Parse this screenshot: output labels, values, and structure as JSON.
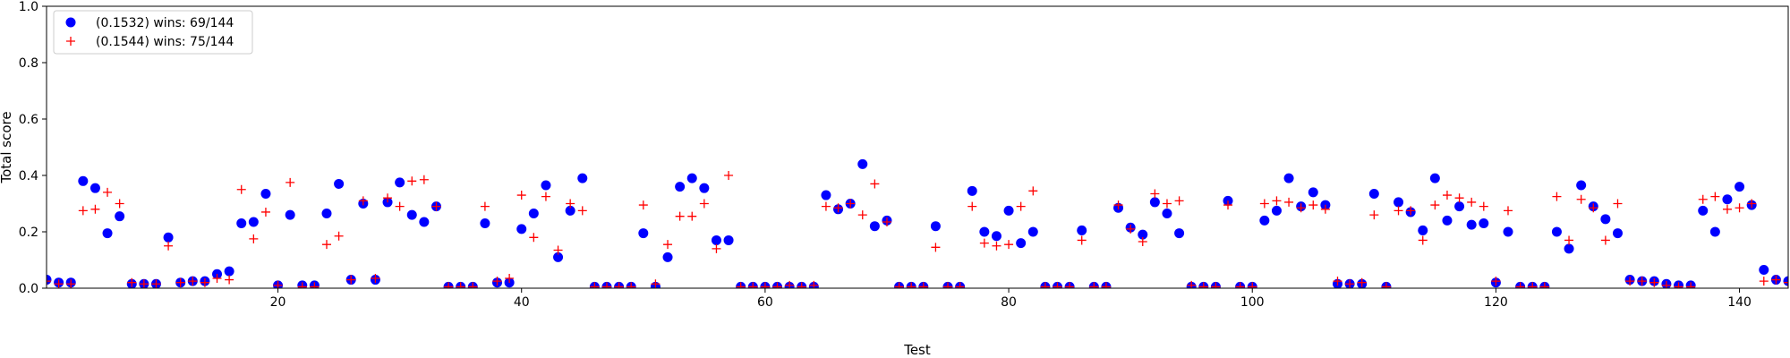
{
  "chart_data": {
    "type": "scatter",
    "title": "",
    "xlabel": "Test",
    "ylabel": "Total score",
    "xlim": [
      1,
      144
    ],
    "ylim": [
      0,
      1.0
    ],
    "x_ticks": [
      20,
      40,
      60,
      80,
      100,
      120,
      140
    ],
    "y_ticks": [
      0.0,
      0.2,
      0.4,
      0.6,
      0.8,
      1.0
    ],
    "x_tick_labels": [
      "20",
      "40",
      "60",
      "80",
      "100",
      "120",
      "140"
    ],
    "y_tick_labels": [
      "0.0",
      "0.2",
      "0.4",
      "0.6",
      "0.8",
      "1.0"
    ],
    "grid": false,
    "legend_position": "top-left",
    "series": [
      {
        "name": "(0.1532) wins: 69/144",
        "marker": "circle",
        "color": "#0000ff",
        "x": [
          1,
          2,
          3,
          4,
          5,
          6,
          7,
          8,
          9,
          10,
          11,
          12,
          13,
          14,
          15,
          16,
          17,
          18,
          19,
          20,
          21,
          22,
          23,
          24,
          25,
          26,
          27,
          28,
          29,
          30,
          31,
          32,
          33,
          34,
          35,
          36,
          37,
          38,
          39,
          40,
          41,
          42,
          43,
          44,
          45,
          46,
          47,
          48,
          49,
          50,
          51,
          52,
          53,
          54,
          55,
          56,
          57,
          58,
          59,
          60,
          61,
          62,
          63,
          64,
          65,
          66,
          67,
          68,
          69,
          70,
          71,
          72,
          73,
          74,
          75,
          76,
          77,
          78,
          79,
          80,
          81,
          82,
          83,
          84,
          85,
          86,
          87,
          88,
          89,
          90,
          91,
          92,
          93,
          94,
          95,
          96,
          97,
          98,
          99,
          100,
          101,
          102,
          103,
          104,
          105,
          106,
          107,
          108,
          109,
          110,
          111,
          112,
          113,
          114,
          115,
          116,
          117,
          118,
          119,
          120,
          121,
          122,
          123,
          124,
          125,
          126,
          127,
          128,
          129,
          130,
          131,
          132,
          133,
          134,
          135,
          136,
          137,
          138,
          139,
          140,
          141,
          142,
          143,
          144
        ],
        "y": [
          0.03,
          0.02,
          0.02,
          0.38,
          0.355,
          0.195,
          0.255,
          0.015,
          0.015,
          0.015,
          0.18,
          0.02,
          0.025,
          0.025,
          0.05,
          0.06,
          0.23,
          0.235,
          0.335,
          0.01,
          0.26,
          0.01,
          0.01,
          0.265,
          0.37,
          0.03,
          0.3,
          0.03,
          0.305,
          0.375,
          0.26,
          0.235,
          0.29,
          0.005,
          0.005,
          0.005,
          0.23,
          0.02,
          0.02,
          0.21,
          0.265,
          0.365,
          0.11,
          0.275,
          0.39,
          0.005,
          0.005,
          0.005,
          0.005,
          0.195,
          0.005,
          0.11,
          0.36,
          0.39,
          0.355,
          0.17,
          0.17,
          0.005,
          0.005,
          0.005,
          0.005,
          0.005,
          0.005,
          0.005,
          0.33,
          0.28,
          0.3,
          0.44,
          0.22,
          0.24,
          0.005,
          0.005,
          0.005,
          0.22,
          0.005,
          0.005,
          0.345,
          0.2,
          0.185,
          0.275,
          0.16,
          0.2,
          0.005,
          0.005,
          0.005,
          0.205,
          0.005,
          0.005,
          0.285,
          0.215,
          0.19,
          0.305,
          0.265,
          0.195,
          0.005,
          0.005,
          0.005,
          0.31,
          0.005,
          0.005,
          0.24,
          0.275,
          0.39,
          0.29,
          0.34,
          0.295,
          0.015,
          0.015,
          0.015,
          0.335,
          0.005,
          0.305,
          0.27,
          0.205,
          0.39,
          0.24,
          0.29,
          0.225,
          0.23,
          0.02,
          0.2,
          0.005,
          0.005,
          0.005,
          0.2,
          0.14,
          0.365,
          0.29,
          0.245,
          0.195,
          0.03,
          0.025,
          0.025,
          0.015,
          0.01,
          0.01,
          0.275,
          0.2,
          0.315,
          0.36,
          0.295,
          0.065,
          0.03,
          0.025
        ]
      },
      {
        "name": "(0.1544) wins: 75/144",
        "marker": "plus",
        "color": "#ff0000",
        "x": [
          1,
          2,
          3,
          4,
          5,
          6,
          7,
          8,
          9,
          10,
          11,
          12,
          13,
          14,
          15,
          16,
          17,
          18,
          19,
          20,
          21,
          22,
          23,
          24,
          25,
          26,
          27,
          28,
          29,
          30,
          31,
          32,
          33,
          34,
          35,
          36,
          37,
          38,
          39,
          40,
          41,
          42,
          43,
          44,
          45,
          46,
          47,
          48,
          49,
          50,
          51,
          52,
          53,
          54,
          55,
          56,
          57,
          58,
          59,
          60,
          61,
          62,
          63,
          64,
          65,
          66,
          67,
          68,
          69,
          70,
          71,
          72,
          73,
          74,
          75,
          76,
          77,
          78,
          79,
          80,
          81,
          82,
          83,
          84,
          85,
          86,
          87,
          88,
          89,
          90,
          91,
          92,
          93,
          94,
          95,
          96,
          97,
          98,
          99,
          100,
          101,
          102,
          103,
          104,
          105,
          106,
          107,
          108,
          109,
          110,
          111,
          112,
          113,
          114,
          115,
          116,
          117,
          118,
          119,
          120,
          121,
          122,
          123,
          124,
          125,
          126,
          127,
          128,
          129,
          130,
          131,
          132,
          133,
          134,
          135,
          136,
          137,
          138,
          139,
          140,
          141,
          142,
          143,
          144
        ],
        "y": [
          0.025,
          0.015,
          0.015,
          0.275,
          0.28,
          0.34,
          0.3,
          0.02,
          0.015,
          0.015,
          0.15,
          0.02,
          0.025,
          0.02,
          0.035,
          0.03,
          0.35,
          0.175,
          0.27,
          0.01,
          0.375,
          0.005,
          0.005,
          0.155,
          0.185,
          0.03,
          0.31,
          0.035,
          0.32,
          0.29,
          0.38,
          0.385,
          0.29,
          0.005,
          0.005,
          0.005,
          0.29,
          0.025,
          0.035,
          0.33,
          0.18,
          0.325,
          0.135,
          0.3,
          0.275,
          0.005,
          0.005,
          0.005,
          0.005,
          0.295,
          0.015,
          0.155,
          0.255,
          0.255,
          0.3,
          0.14,
          0.4,
          0.005,
          0.005,
          0.005,
          0.005,
          0.01,
          0.005,
          0.01,
          0.29,
          0.285,
          0.3,
          0.26,
          0.37,
          0.235,
          0.005,
          0.005,
          0.005,
          0.145,
          0.005,
          0.005,
          0.29,
          0.16,
          0.15,
          0.155,
          0.29,
          0.345,
          0.005,
          0.005,
          0.005,
          0.17,
          0.005,
          0.005,
          0.295,
          0.21,
          0.165,
          0.335,
          0.3,
          0.31,
          0.01,
          0.005,
          0.005,
          0.295,
          0.005,
          0.005,
          0.3,
          0.31,
          0.305,
          0.285,
          0.295,
          0.28,
          0.025,
          0.015,
          0.02,
          0.26,
          0.005,
          0.275,
          0.275,
          0.17,
          0.295,
          0.33,
          0.32,
          0.305,
          0.29,
          0.025,
          0.275,
          0.005,
          0.005,
          0.005,
          0.325,
          0.17,
          0.315,
          0.285,
          0.17,
          0.3,
          0.025,
          0.025,
          0.02,
          0.01,
          0.005,
          0.005,
          0.315,
          0.325,
          0.28,
          0.285,
          0.3,
          0.025,
          0.03,
          0.02
        ]
      }
    ]
  }
}
